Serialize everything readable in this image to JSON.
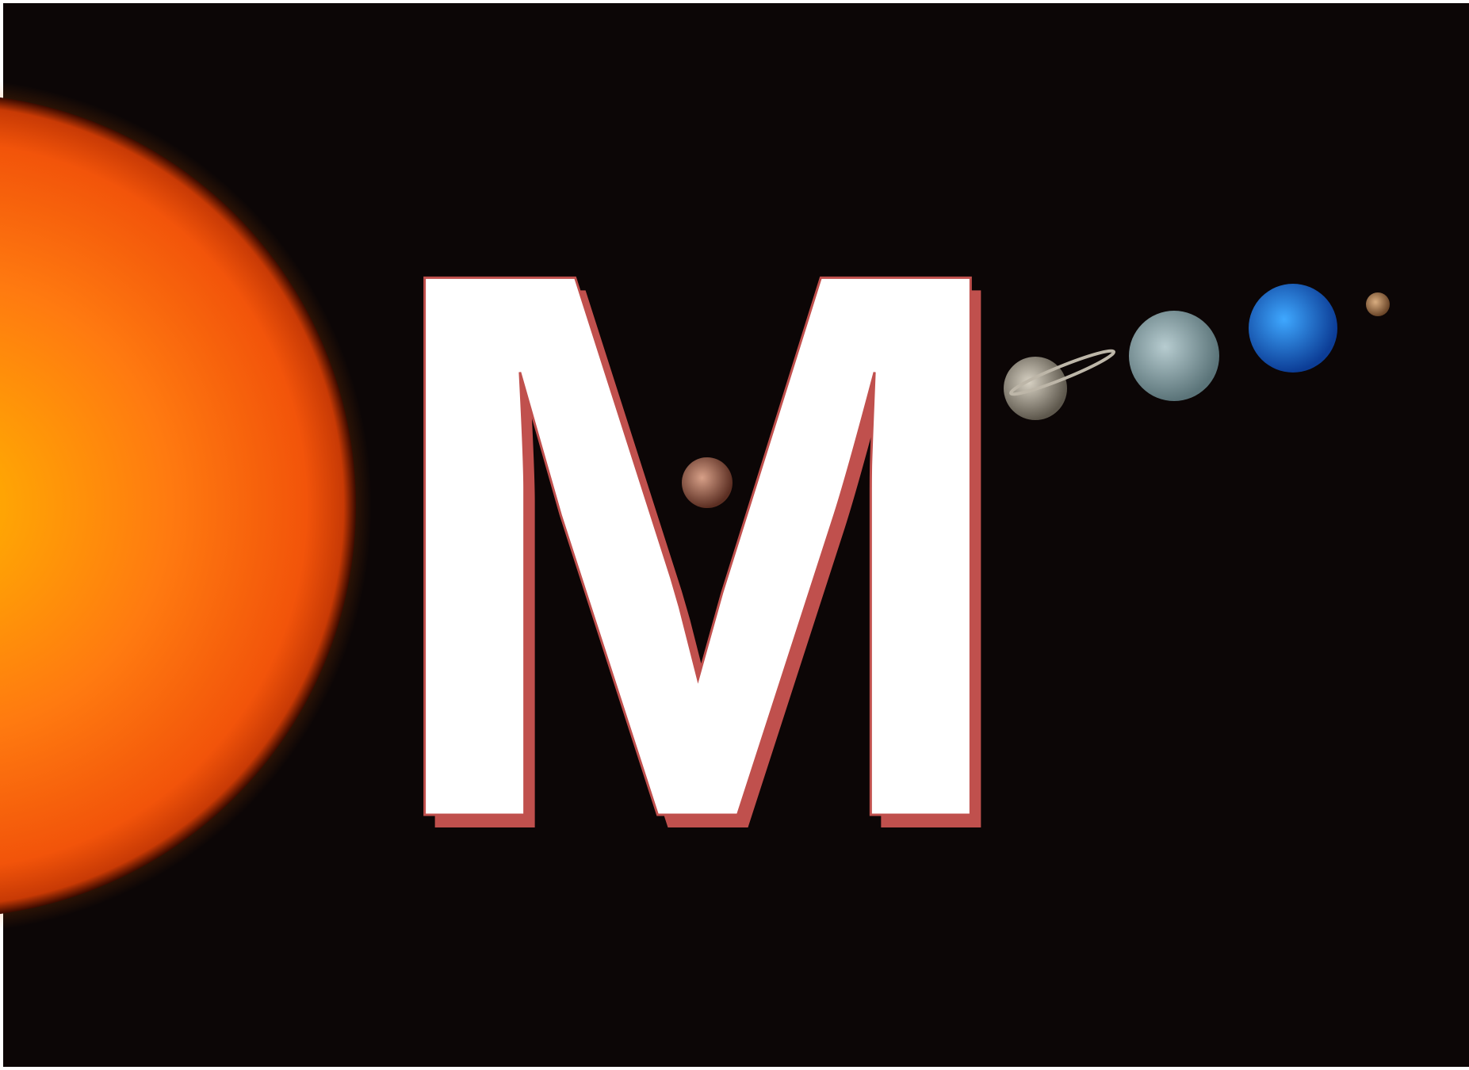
{
  "slide": {
    "letter": "M"
  }
}
